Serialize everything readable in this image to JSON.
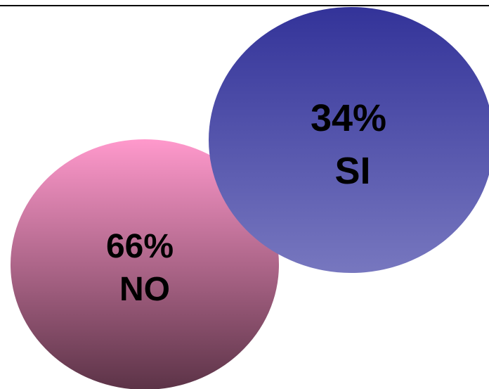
{
  "chart_data": {
    "type": "pie",
    "style": "overlapping-bubbles",
    "title": "",
    "categories": [
      "NO",
      "SI"
    ],
    "values": [
      66,
      34
    ],
    "unit": "%",
    "slices": [
      {
        "label": "NO",
        "value": 66,
        "value_label": "66%",
        "color_top": "#ff99cc",
        "color_bottom": "#5c3347"
      },
      {
        "label": "SI",
        "value": 34,
        "value_label": "34%",
        "color_top": "#333399",
        "color_bottom": "#7777bf"
      }
    ]
  }
}
